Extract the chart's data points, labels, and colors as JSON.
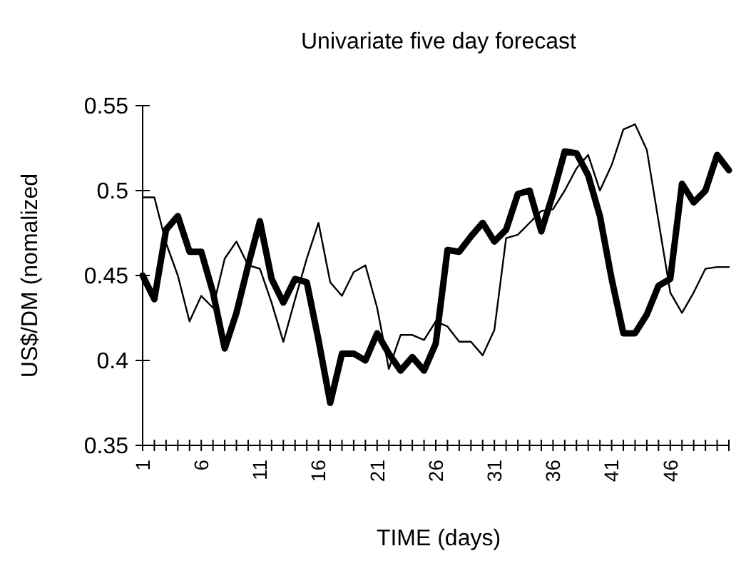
{
  "chart_data": {
    "type": "line",
    "title": "Univariate five day forecast",
    "xlabel": "TIME (days)",
    "ylabel": "US$/DM (nomalized",
    "categories": [
      "1",
      null,
      null,
      null,
      null,
      "6",
      null,
      null,
      null,
      null,
      "11",
      null,
      null,
      null,
      null,
      "16",
      null,
      null,
      null,
      null,
      "21",
      null,
      null,
      null,
      null,
      "26",
      null,
      null,
      null,
      null,
      "31",
      null,
      null,
      null,
      null,
      "36",
      null,
      null,
      null,
      null,
      "41",
      null,
      null,
      null,
      null,
      "46",
      null,
      null,
      null,
      null,
      null
    ],
    "ylim": [
      0.35,
      0.55
    ],
    "yticks": [
      0.35,
      0.4,
      0.45,
      0.5,
      0.55
    ],
    "series": [
      {
        "color": "#000000",
        "values": [
          0.45,
          0.436,
          0.477,
          0.485,
          0.464,
          0.464,
          0.44,
          0.407,
          0.428,
          0.456,
          0.482,
          0.448,
          0.434,
          0.448,
          0.446,
          0.412,
          0.375,
          0.404,
          0.404,
          0.4,
          0.416,
          0.404,
          0.394,
          0.402,
          0.394,
          0.41,
          0.465,
          0.464,
          0.473,
          0.481,
          0.47,
          0.477,
          0.498,
          0.5,
          0.476,
          0.498,
          0.523,
          0.522,
          0.509,
          0.485,
          0.448,
          0.416,
          0.416,
          0.427,
          0.444,
          0.448,
          0.504,
          0.493,
          0.5,
          0.521,
          0.512
        ]
      },
      {
        "color": "#000000",
        "values": [
          0.496,
          0.496,
          0.469,
          0.45,
          0.423,
          0.438,
          0.431,
          0.46,
          0.47,
          0.456,
          0.454,
          0.434,
          0.411,
          0.436,
          0.46,
          0.481,
          0.446,
          0.438,
          0.452,
          0.456,
          0.431,
          0.395,
          0.415,
          0.415,
          0.412,
          0.423,
          0.42,
          0.411,
          0.411,
          0.403,
          0.418,
          0.472,
          0.474,
          0.481,
          0.488,
          0.489,
          0.5,
          0.513,
          0.521,
          0.5,
          0.515,
          0.536,
          0.539,
          0.524,
          0.482,
          0.44,
          0.428,
          0.44,
          0.454,
          0.455,
          0.455
        ]
      }
    ]
  }
}
